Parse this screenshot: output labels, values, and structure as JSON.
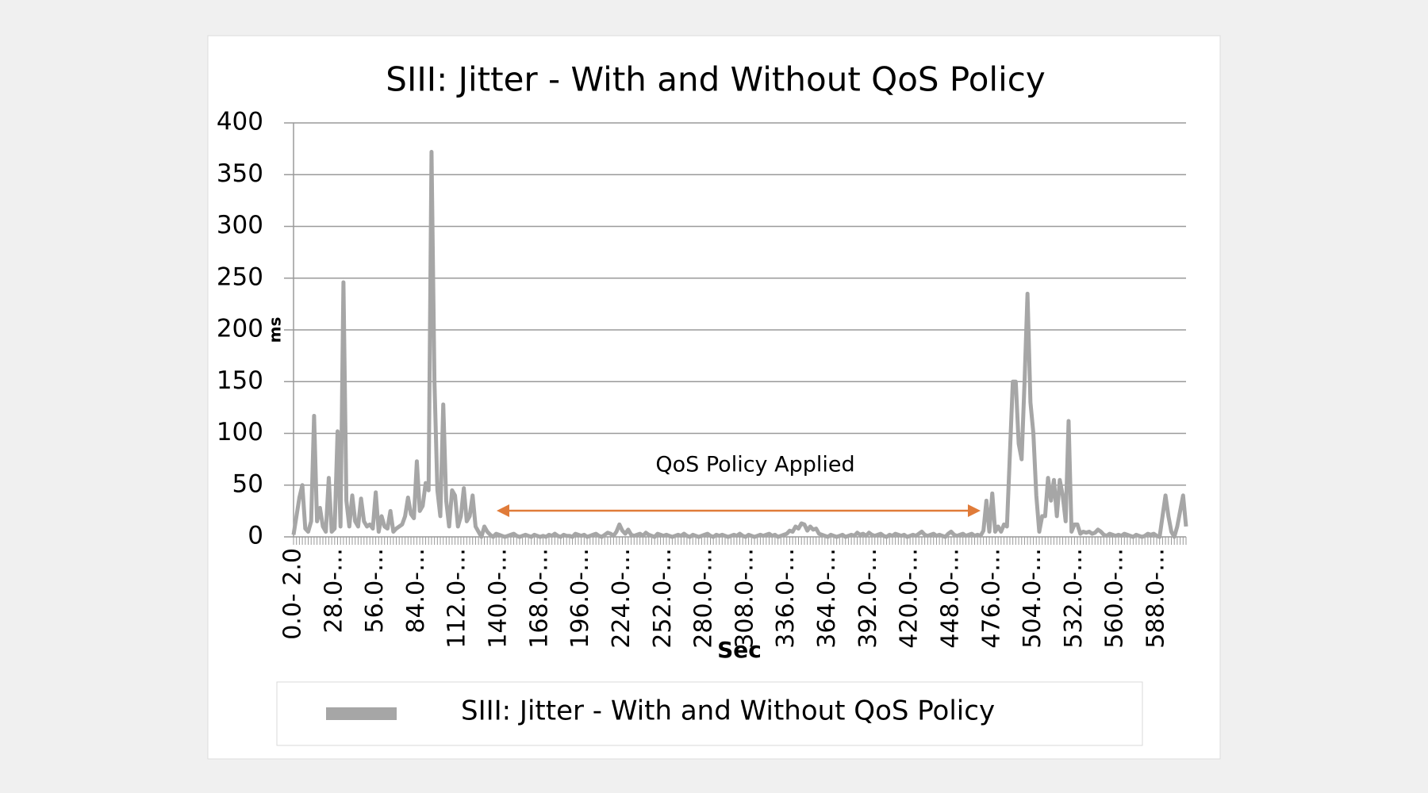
{
  "chart_data": {
    "type": "line",
    "title": "SIII: Jitter - With and Without QoS Policy",
    "xlabel": "Sec",
    "ylabel": "ms",
    "annotation": "QoS Policy Applied",
    "ylim": [
      0,
      400
    ],
    "yticks": [
      0,
      50,
      100,
      150,
      200,
      250,
      300,
      350,
      400
    ],
    "grid": true,
    "legend": "bottom",
    "categories": [
      "0.0- 2.0",
      null,
      null,
      null,
      null,
      null,
      null,
      null,
      null,
      null,
      null,
      null,
      null,
      null,
      "28.0-…",
      null,
      null,
      null,
      null,
      null,
      null,
      null,
      null,
      null,
      null,
      null,
      null,
      null,
      "56.0-…",
      null,
      null,
      null,
      null,
      null,
      null,
      null,
      null,
      null,
      null,
      null,
      null,
      null,
      "84.0-…",
      null,
      null,
      null,
      null,
      null,
      null,
      null,
      null,
      null,
      null,
      null,
      null,
      null,
      "112.0-…",
      null,
      null,
      null,
      null,
      null,
      null,
      null,
      null,
      null,
      null,
      null,
      null,
      null,
      "140.0-…",
      null,
      null,
      null,
      null,
      null,
      null,
      null,
      null,
      null,
      null,
      null,
      null,
      null,
      "168.0-…",
      null,
      null,
      null,
      null,
      null,
      null,
      null,
      null,
      null,
      null,
      null,
      null,
      null,
      "196.0-…",
      null,
      null,
      null,
      null,
      null,
      null,
      null,
      null,
      null,
      null,
      null,
      null,
      null,
      "224.0-…",
      null,
      null,
      null,
      null,
      null,
      null,
      null,
      null,
      null,
      null,
      null,
      null,
      null,
      "252.0-…",
      null,
      null,
      null,
      null,
      null,
      null,
      null,
      null,
      null,
      null,
      null,
      null,
      null,
      "280.0-…",
      null,
      null,
      null,
      null,
      null,
      null,
      null,
      null,
      null,
      null,
      null,
      null,
      null,
      "308.0-…",
      null,
      null,
      null,
      null,
      null,
      null,
      null,
      null,
      null,
      null,
      null,
      null,
      null,
      "336.0-…",
      null,
      null,
      null,
      null,
      null,
      null,
      null,
      null,
      null,
      null,
      null,
      null,
      null,
      "364.0-…",
      null,
      null,
      null,
      null,
      null,
      null,
      null,
      null,
      null,
      null,
      null,
      null,
      null,
      "392.0-…",
      null,
      null,
      null,
      null,
      null,
      null,
      null,
      null,
      null,
      null,
      null,
      null,
      null,
      "420.0-…",
      null,
      null,
      null,
      null,
      null,
      null,
      null,
      null,
      null,
      null,
      null,
      null,
      null,
      "448.0-…",
      null,
      null,
      null,
      null,
      null,
      null,
      null,
      null,
      null,
      null,
      null,
      null,
      null,
      "476.0-…",
      null,
      null,
      null,
      null,
      null,
      null,
      null,
      null,
      null,
      null,
      null,
      null,
      null,
      "504.0-…",
      null,
      null,
      null,
      null,
      null,
      null,
      null,
      null,
      null,
      null,
      null,
      null,
      null,
      "532.0-…",
      null,
      null,
      null,
      null,
      null,
      null,
      null,
      null,
      null,
      null,
      null,
      null,
      null,
      "560.0-…",
      null,
      null,
      null,
      null,
      null,
      null,
      null,
      null,
      null,
      null,
      null,
      null,
      null,
      "588.0-…",
      null,
      null,
      null,
      null,
      null,
      null,
      null,
      null,
      null,
      null
    ],
    "series": [
      {
        "name": "SIII: Jitter - With and Without QoS Policy",
        "color": "#a6a6a6",
        "values": [
          2,
          20,
          38,
          50,
          8,
          5,
          15,
          117,
          15,
          28,
          10,
          5,
          57,
          5,
          8,
          102,
          10,
          246,
          35,
          10,
          40,
          15,
          10,
          37,
          15,
          10,
          12,
          8,
          43,
          5,
          20,
          10,
          8,
          25,
          5,
          8,
          10,
          12,
          20,
          38,
          22,
          18,
          73,
          25,
          30,
          52,
          45,
          372,
          150,
          45,
          20,
          128,
          35,
          10,
          45,
          40,
          10,
          20,
          47,
          15,
          20,
          40,
          10,
          5,
          0,
          10,
          5,
          2,
          0,
          3,
          2,
          1,
          0,
          1,
          2,
          3,
          1,
          0,
          1,
          2,
          1,
          0,
          2,
          1,
          0,
          1,
          0,
          2,
          1,
          3,
          1,
          0,
          2,
          1,
          1,
          0,
          3,
          2,
          1,
          2,
          0,
          1,
          2,
          3,
          1,
          0,
          2,
          4,
          3,
          1,
          5,
          12,
          6,
          3,
          7,
          2,
          1,
          2,
          3,
          1,
          4,
          2,
          1,
          0,
          3,
          2,
          1,
          2,
          1,
          0,
          1,
          2,
          1,
          3,
          1,
          0,
          2,
          1,
          0,
          1,
          2,
          3,
          1,
          0,
          2,
          1,
          2,
          1,
          0,
          1,
          2,
          1,
          3,
          1,
          0,
          2,
          1,
          0,
          1,
          2,
          1,
          2,
          3,
          1,
          2,
          0,
          1,
          2,
          3,
          6,
          5,
          10,
          8,
          13,
          12,
          6,
          10,
          7,
          8,
          3,
          2,
          1,
          0,
          2,
          1,
          0,
          1,
          2,
          0,
          1,
          2,
          1,
          4,
          2,
          3,
          1,
          4,
          2,
          1,
          2,
          3,
          1,
          0,
          2,
          1,
          3,
          2,
          1,
          2,
          0,
          1,
          2,
          1,
          3,
          5,
          2,
          1,
          2,
          3,
          1,
          2,
          1,
          0,
          3,
          5,
          2,
          1,
          2,
          3,
          1,
          2,
          3,
          1,
          2,
          1,
          6,
          35,
          5,
          42,
          5,
          10,
          5,
          12,
          10,
          80,
          150,
          150,
          90,
          75,
          150,
          235,
          130,
          100,
          40,
          5,
          20,
          20,
          57,
          35,
          55,
          20,
          55,
          40,
          15,
          112,
          5,
          12,
          12,
          3,
          5,
          4,
          5,
          3,
          4,
          7,
          5,
          2,
          1,
          3,
          2,
          1,
          2,
          1,
          3,
          2,
          1,
          0,
          2,
          1,
          0,
          1,
          3,
          2,
          3,
          1,
          0,
          20,
          40,
          20,
          5,
          0,
          10,
          25,
          40,
          10
        ]
      }
    ]
  }
}
